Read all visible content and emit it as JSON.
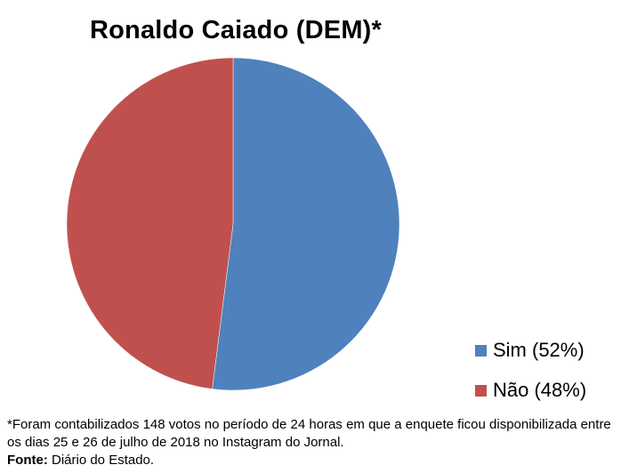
{
  "chart_data": {
    "type": "pie",
    "title": "Ronaldo Caiado (DEM)*",
    "slices": [
      {
        "label": "Sim (52%)",
        "value": 52,
        "color": "#4f81bd"
      },
      {
        "label": "Não (48%)",
        "value": 48,
        "color": "#c0504d"
      }
    ],
    "legend_position": "bottom-right"
  },
  "footnote": {
    "text": "*Foram contabilizados 148 votos no período de 24 horas em que a enquete ficou disponibilizada entre os dias 25 e 26 de julho de 2018 no Instagram do Jornal.",
    "source_label": "Fonte:",
    "source_value": " Diário do Estado."
  }
}
